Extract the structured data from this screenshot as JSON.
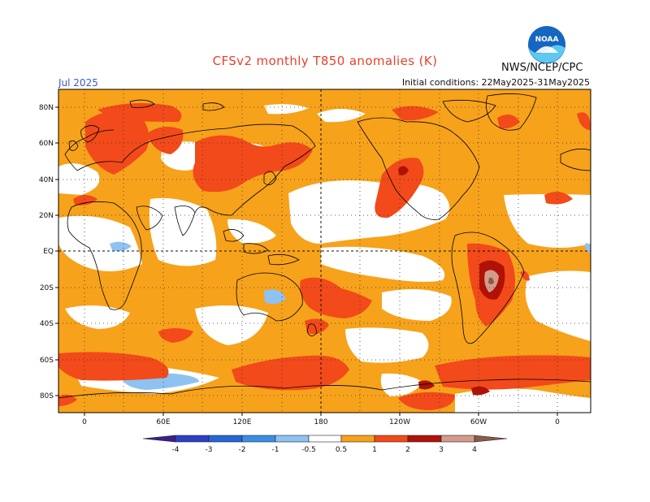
{
  "header": {
    "title": "CFSv2 monthly T850 anomalies (K)",
    "lead_month": "Jul 2025",
    "initial_conditions": "Initial conditions: 22May2025-31May2025",
    "agency": "NWS/NCEP/CPC",
    "logo_text": "NOAA"
  },
  "map": {
    "projection": "cylindrical equidistant",
    "lon_labels": [
      "0",
      "60E",
      "120E",
      "180",
      "120W",
      "60W",
      "0"
    ],
    "lat_labels": [
      "80N",
      "60N",
      "40N",
      "20N",
      "EQ",
      "20S",
      "40S",
      "60S",
      "80S"
    ],
    "grid": "dotted every 30 degrees",
    "colorbar": {
      "levels": [
        "-4",
        "-3",
        "-2",
        "-1",
        "-0.5",
        "0.5",
        "1",
        "2",
        "3",
        "4"
      ],
      "colors": [
        "#3a1f8f",
        "#2e3fc4",
        "#2565d6",
        "#3b8ee6",
        "#8ec2f2",
        "#ffffff",
        "#f7a21b",
        "#f24a1a",
        "#b01207",
        "#d49b8a",
        "#8a5a4a"
      ]
    }
  }
}
